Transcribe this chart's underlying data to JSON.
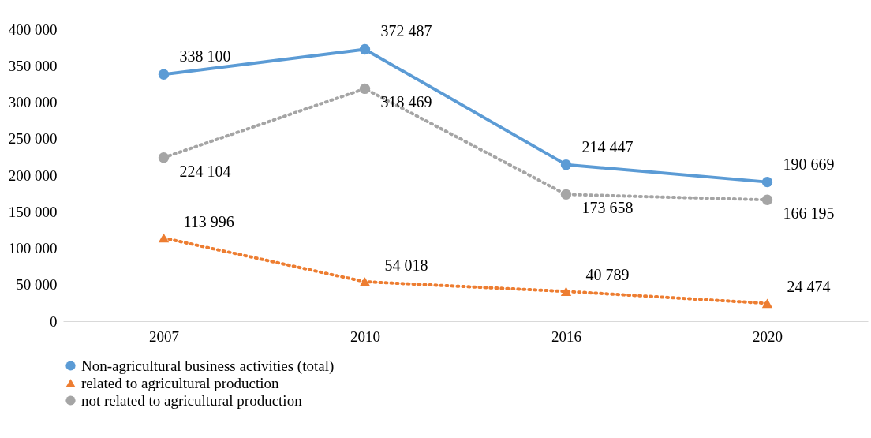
{
  "chart_data": {
    "type": "line",
    "categories": [
      "2007",
      "2010",
      "2016",
      "2020"
    ],
    "series": [
      {
        "name": "Non-agricultural business activities (total)",
        "color": "#5b9bd5",
        "marker": "circle",
        "line_style": "solid",
        "values": [
          338100,
          372487,
          214447,
          190669
        ],
        "value_labels": [
          "338 100",
          "372 487",
          "214 447",
          "190 669"
        ]
      },
      {
        "name": "related to agricultural production",
        "color": "#ed7d31",
        "marker": "triangle",
        "line_style": "dotted",
        "values": [
          113996,
          54018,
          40789,
          24474
        ],
        "value_labels": [
          "113 996",
          "54 018",
          "40 789",
          "24 474"
        ]
      },
      {
        "name": "not related to agricultural production",
        "color": "#a5a5a5",
        "marker": "circle",
        "line_style": "dotted",
        "values": [
          224104,
          318469,
          173658,
          166195
        ],
        "value_labels": [
          "224 104",
          "318 469",
          "173 658",
          "166 195"
        ]
      }
    ],
    "ylim": [
      0,
      400000
    ],
    "yticks": [
      {
        "value": 0,
        "label": "0"
      },
      {
        "value": 50000,
        "label": "50 000"
      },
      {
        "value": 100000,
        "label": "100 000"
      },
      {
        "value": 150000,
        "label": "150 000"
      },
      {
        "value": 200000,
        "label": "200 000"
      },
      {
        "value": 250000,
        "label": "250 000"
      },
      {
        "value": 300000,
        "label": "300 000"
      },
      {
        "value": 350000,
        "label": "350 000"
      },
      {
        "value": 400000,
        "label": "400 000"
      }
    ],
    "grid": false,
    "legend": "bottom"
  }
}
